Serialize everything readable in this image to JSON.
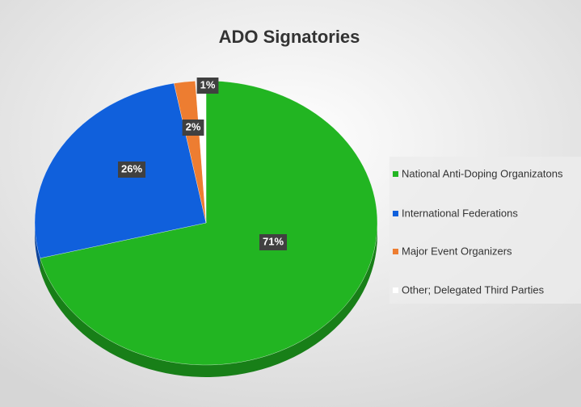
{
  "chart_data": {
    "type": "pie",
    "title": "ADO Signatories",
    "categories": [
      "National Anti-Doping Organizatons",
      "International Federations",
      "Major Event Organizers",
      "Other; Delegated Third Parties"
    ],
    "values": [
      71,
      26,
      2,
      1
    ],
    "value_labels": [
      "71%",
      "26%",
      "2%",
      "1%"
    ],
    "colors": [
      "#22b522",
      "#1060dc",
      "#ed7d31",
      "#ffffff"
    ],
    "legend": "right"
  }
}
